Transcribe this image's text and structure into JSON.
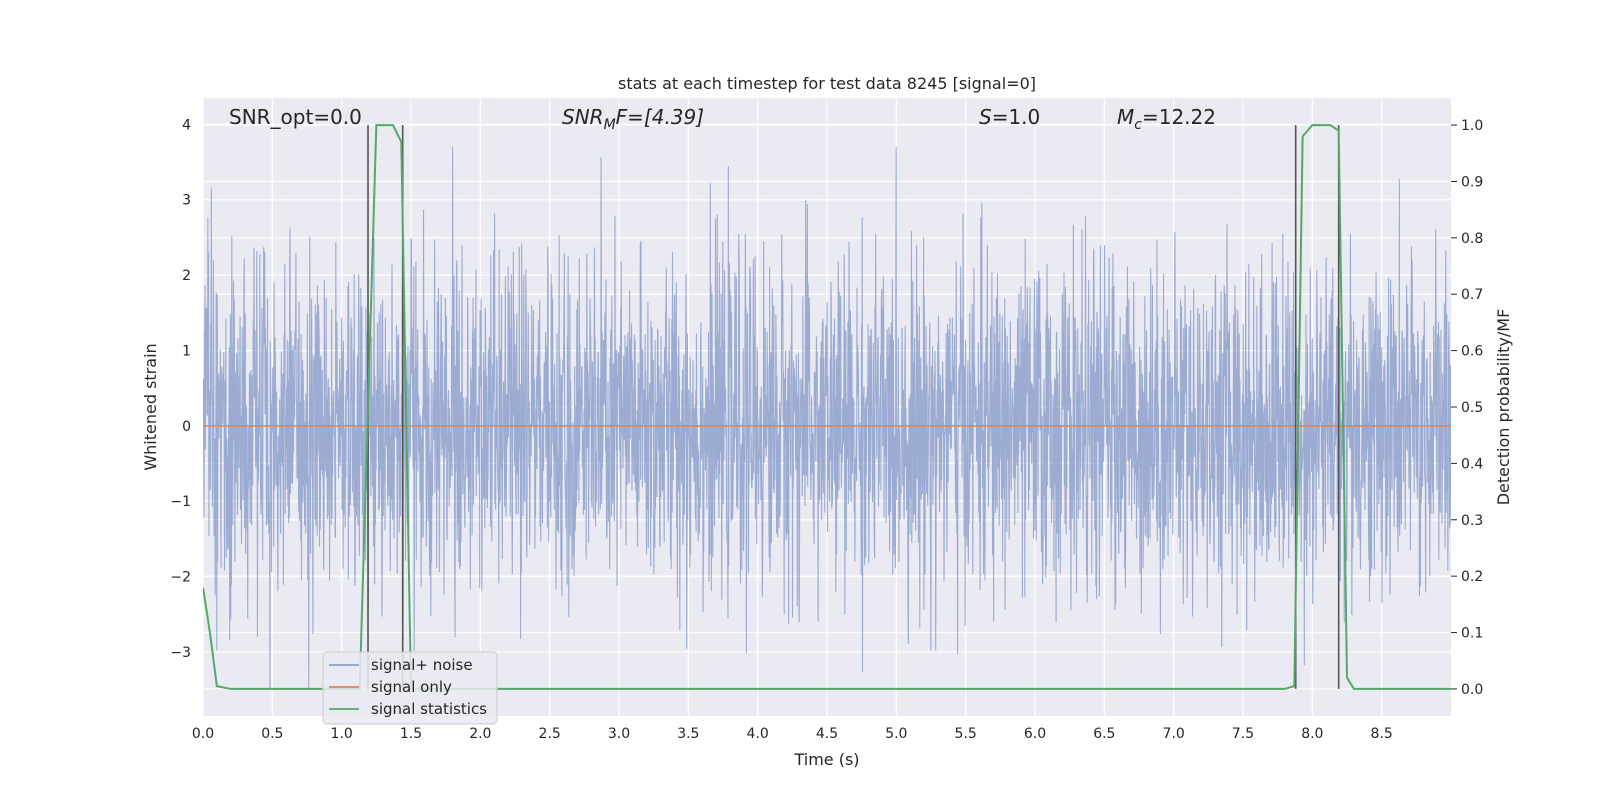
{
  "chart_data": {
    "type": "line",
    "title": "stats at each timestep for test data 8245 [signal=0]",
    "xlabel": "Time (s)",
    "ylabel_left": "Whitened strain",
    "ylabel_right": "Detection probability/MF",
    "xlim": [
      0.0,
      9.0
    ],
    "ylim_left": [
      -3.85,
      4.35
    ],
    "ylim_right": [
      -0.048,
      1.048
    ],
    "x_ticks": [
      "0.0",
      "0.5",
      "1.0",
      "1.5",
      "2.0",
      "2.5",
      "3.0",
      "3.5",
      "4.0",
      "4.5",
      "5.0",
      "5.5",
      "6.0",
      "6.5",
      "7.0",
      "7.5",
      "8.0",
      "8.5"
    ],
    "y_left_ticks": [
      "−3",
      "−2",
      "−1",
      "0",
      "1",
      "2",
      "3",
      "4"
    ],
    "y_right_ticks": [
      "0.0",
      "0.1",
      "0.2",
      "0.3",
      "0.4",
      "0.5",
      "0.6",
      "0.7",
      "0.8",
      "0.9",
      "1.0"
    ],
    "grid": true,
    "legend_position": "lower-left",
    "annotations": {
      "snr_opt": "SNR_opt=0.0",
      "snr_mf_main": "SNR",
      "snr_mf_sub": "M",
      "snr_mf_tail": "F=[4.39]",
      "s_main": "S",
      "s_tail": "=1.0",
      "mc_main": "M",
      "mc_sub": "c",
      "mc_tail": "=12.22"
    },
    "series": [
      {
        "name": "signal+ noise",
        "color": "#8da0cb",
        "axis": "left",
        "description_values": "dense whitened noise spanning about -3.5 to 3.7"
      },
      {
        "name": "signal only",
        "color": "#dd8452",
        "axis": "left",
        "x": [
          0.0,
          9.0
        ],
        "y": [
          0.0,
          0.0
        ]
      },
      {
        "name": "signal statistics",
        "color": "#55a868",
        "axis": "right",
        "x": [
          0.0,
          0.05,
          0.1,
          0.2,
          1.13,
          1.19,
          1.25,
          1.37,
          1.43,
          1.5,
          7.8,
          7.87,
          7.93,
          8.0,
          8.13,
          8.19,
          8.25,
          8.3,
          9.0
        ],
        "y": [
          0.18,
          0.1,
          0.005,
          0.0,
          0.0,
          0.5,
          1.0,
          1.0,
          0.97,
          0.0,
          0.0,
          0.005,
          0.98,
          1.0,
          1.0,
          0.99,
          0.02,
          0.0,
          0.0
        ]
      }
    ],
    "vertical_markers": [
      1.19,
      1.44,
      7.88,
      8.19
    ],
    "noise_seed": 8245
  }
}
